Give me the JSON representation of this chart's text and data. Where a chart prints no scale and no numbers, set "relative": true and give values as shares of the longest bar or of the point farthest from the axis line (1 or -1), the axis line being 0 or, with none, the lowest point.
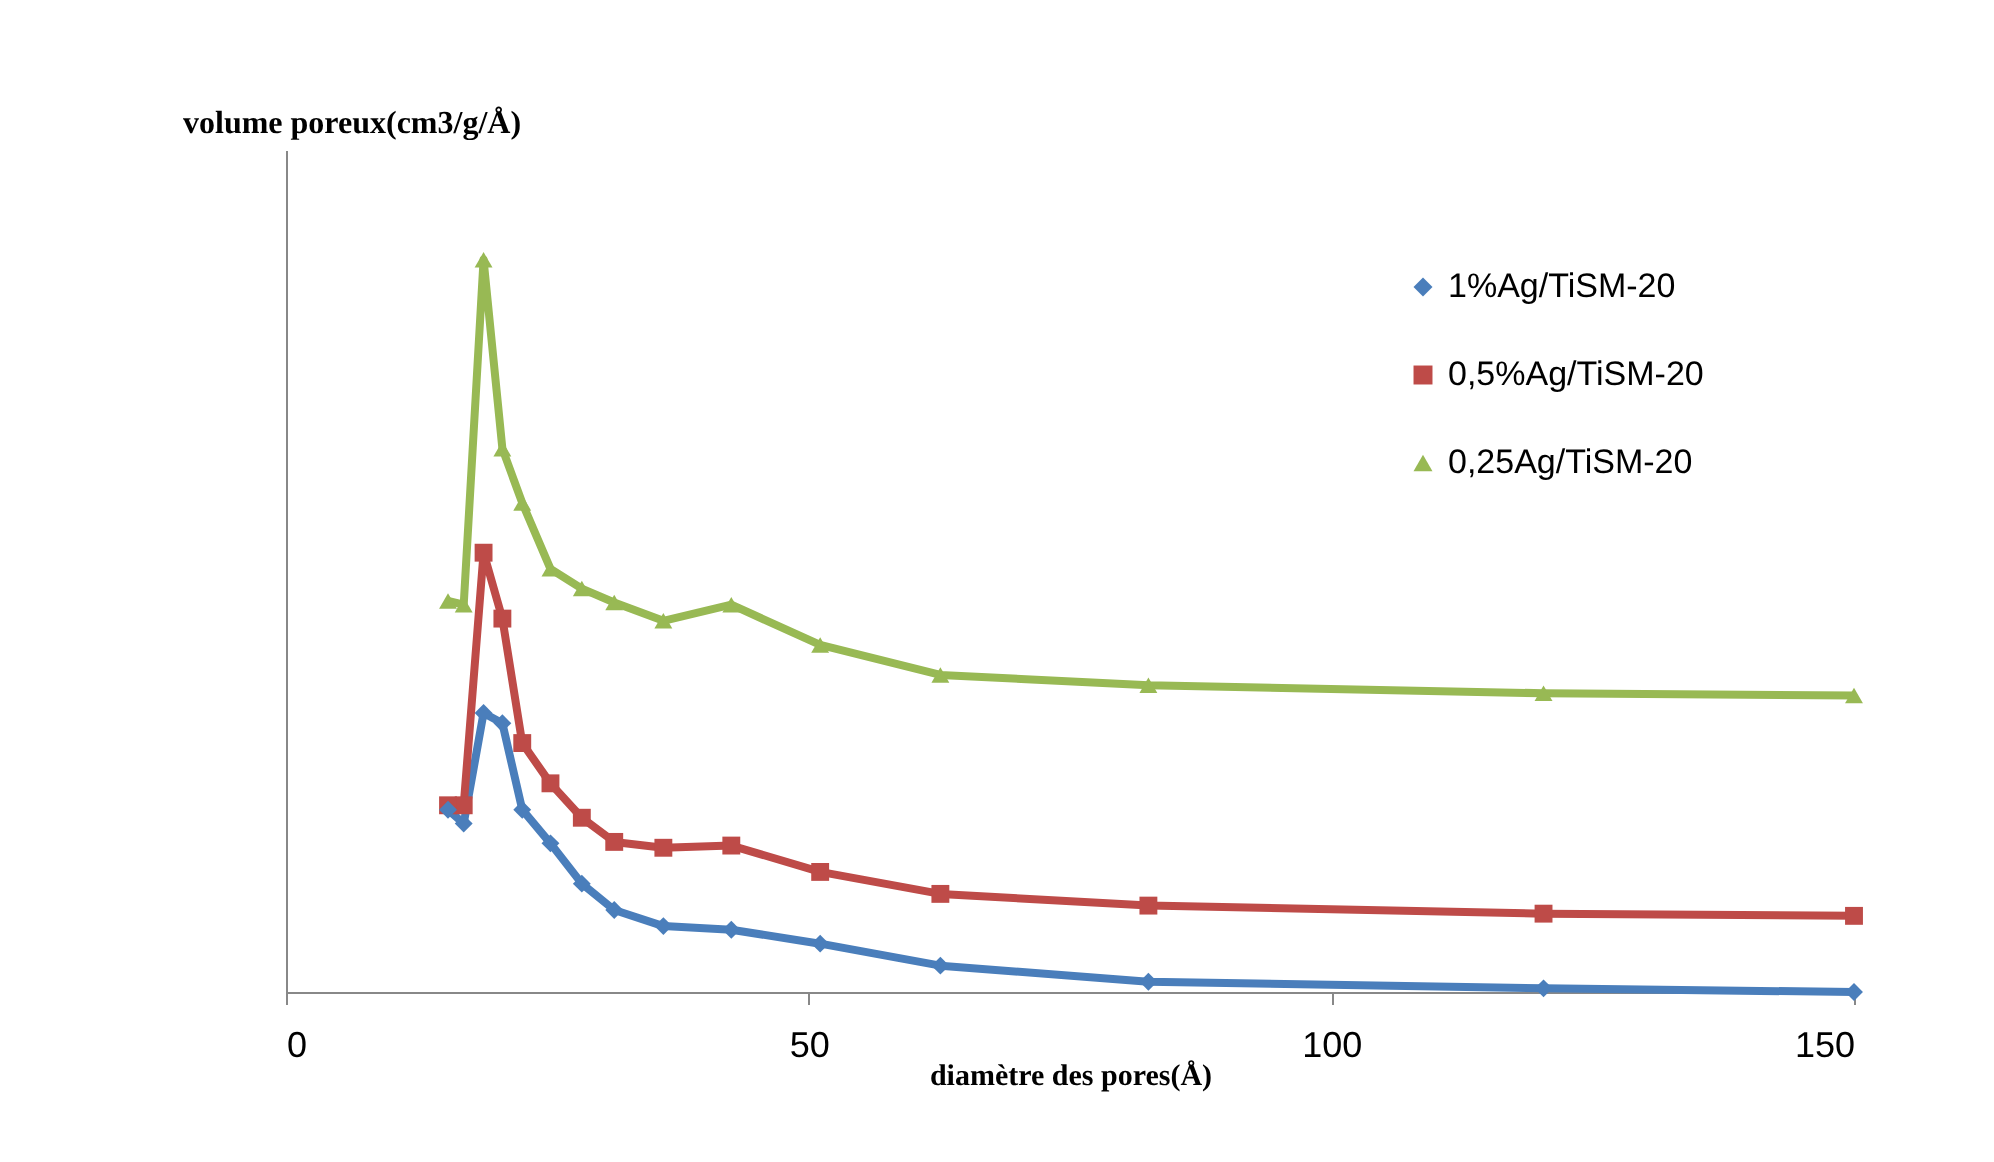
{
  "chart_data": {
    "type": "line",
    "relative": true,
    "xlabel": "diamètre des pores(Å)",
    "ylabel": "volume poreux(cm3/g/Å)",
    "xlim": [
      0,
      150
    ],
    "xticks": [
      0,
      50,
      100,
      150
    ],
    "legend": "right",
    "grid": false,
    "x": [
      15.5,
      17.0,
      18.9,
      20.7,
      22.6,
      25.3,
      28.3,
      31.4,
      36.1,
      42.6,
      51.1,
      62.6,
      82.5,
      120.3,
      150
    ],
    "series": [
      {
        "name": "1%Ag/TiSM-20",
        "color": "#4a7ebb",
        "marker": "diamond",
        "values": [
          0.249,
          0.23,
          0.381,
          0.367,
          0.249,
          0.203,
          0.148,
          0.112,
          0.09,
          0.085,
          0.066,
          0.036,
          0.014,
          0.005,
          0
        ]
      },
      {
        "name": "0,5%Ag/TiSM-20",
        "color": "#be4b48",
        "marker": "square",
        "values": [
          0.255,
          0.255,
          0.6,
          0.51,
          0.34,
          0.285,
          0.238,
          0.205,
          0.197,
          0.2,
          0.164,
          0.134,
          0.118,
          0.107,
          0.104
        ]
      },
      {
        "name": "0,25Ag/TiSM-20",
        "color": "#98b954",
        "marker": "triangle",
        "values": [
          0.534,
          0.529,
          1,
          0.742,
          0.668,
          0.578,
          0.551,
          0.532,
          0.507,
          0.529,
          0.474,
          0.433,
          0.419,
          0.408,
          0.405
        ]
      }
    ]
  }
}
